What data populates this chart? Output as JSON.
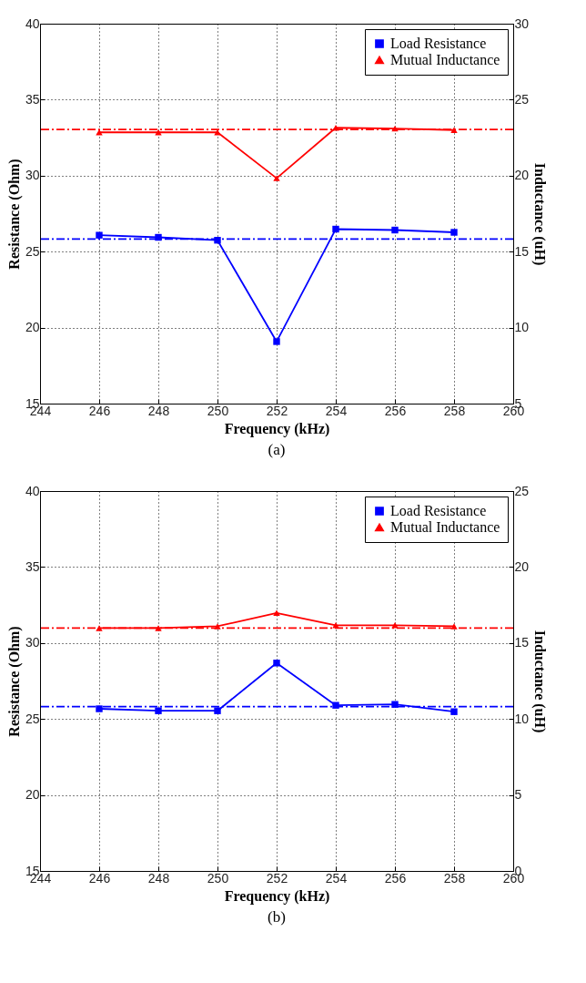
{
  "chart_data": [
    {
      "type": "line",
      "xlabel": "Frequency  (kHz)",
      "ylabel": "Resistance  (Ohm)",
      "y2label": "Inductance  (uH)",
      "annotations": [
        "(a)"
      ],
      "x": [
        246,
        248,
        250,
        252,
        254,
        256,
        258
      ],
      "xlim": [
        244,
        260
      ],
      "xticks": [
        244,
        246,
        248,
        250,
        252,
        254,
        256,
        258,
        260
      ],
      "ylim": [
        15,
        40
      ],
      "yticks": [
        15,
        20,
        25,
        30,
        35,
        40
      ],
      "y2lim": [
        5,
        30
      ],
      "y2ticks": [
        5,
        10,
        15,
        20,
        25,
        30
      ],
      "grid": true,
      "legend": "top right",
      "line_style": "solid",
      "series": [
        {
          "name": "Load Resistance",
          "color": "#0000ff",
          "marker": "square",
          "values": [
            26.08,
            25.94,
            25.75,
            19.08,
            26.48,
            26.42,
            26.27
          ]
        },
        {
          "name": "Mutual Inductance",
          "color": "#ff0000",
          "marker": "triangle",
          "axis": "y2",
          "values": [
            22.85,
            22.85,
            22.85,
            19.83,
            23.15,
            23.1,
            23.0
          ]
        }
      ],
      "ref_lines": [
        {
          "axis": "y",
          "value": 25.83,
          "color": "#0000ff",
          "line_style": "dashed"
        },
        {
          "axis": "y2",
          "value": 23.04,
          "color": "#ff0000",
          "line_style": "dashed"
        }
      ]
    },
    {
      "type": "line",
      "xlabel": "Frequency  (kHz)",
      "ylabel": "Resistance  (Ohm)",
      "y2label": "Inductance  (uH)",
      "annotations": [
        "(b)"
      ],
      "x": [
        246,
        248,
        250,
        252,
        254,
        256,
        258
      ],
      "xlim": [
        244,
        260
      ],
      "xticks": [
        244,
        246,
        248,
        250,
        252,
        254,
        256,
        258,
        260
      ],
      "ylim": [
        15,
        40
      ],
      "yticks": [
        15,
        20,
        25,
        30,
        35,
        40
      ],
      "y2lim": [
        0,
        25
      ],
      "y2ticks": [
        0,
        5,
        10,
        15,
        20,
        25
      ],
      "grid": true,
      "legend": "top right",
      "line_style": "solid",
      "series": [
        {
          "name": "Load Resistance",
          "color": "#0000ff",
          "marker": "square",
          "values": [
            25.67,
            25.54,
            25.54,
            28.68,
            25.9,
            25.96,
            25.48
          ]
        },
        {
          "name": "Mutual Inductance",
          "color": "#ff0000",
          "marker": "triangle",
          "axis": "y2",
          "values": [
            15.98,
            15.98,
            16.1,
            16.98,
            16.17,
            16.17,
            16.1
          ]
        }
      ],
      "ref_lines": [
        {
          "axis": "y",
          "value": 25.81,
          "color": "#0000ff",
          "line_style": "dashed"
        },
        {
          "axis": "y2",
          "value": 15.98,
          "color": "#ff0000",
          "line_style": "dashed"
        }
      ]
    }
  ]
}
